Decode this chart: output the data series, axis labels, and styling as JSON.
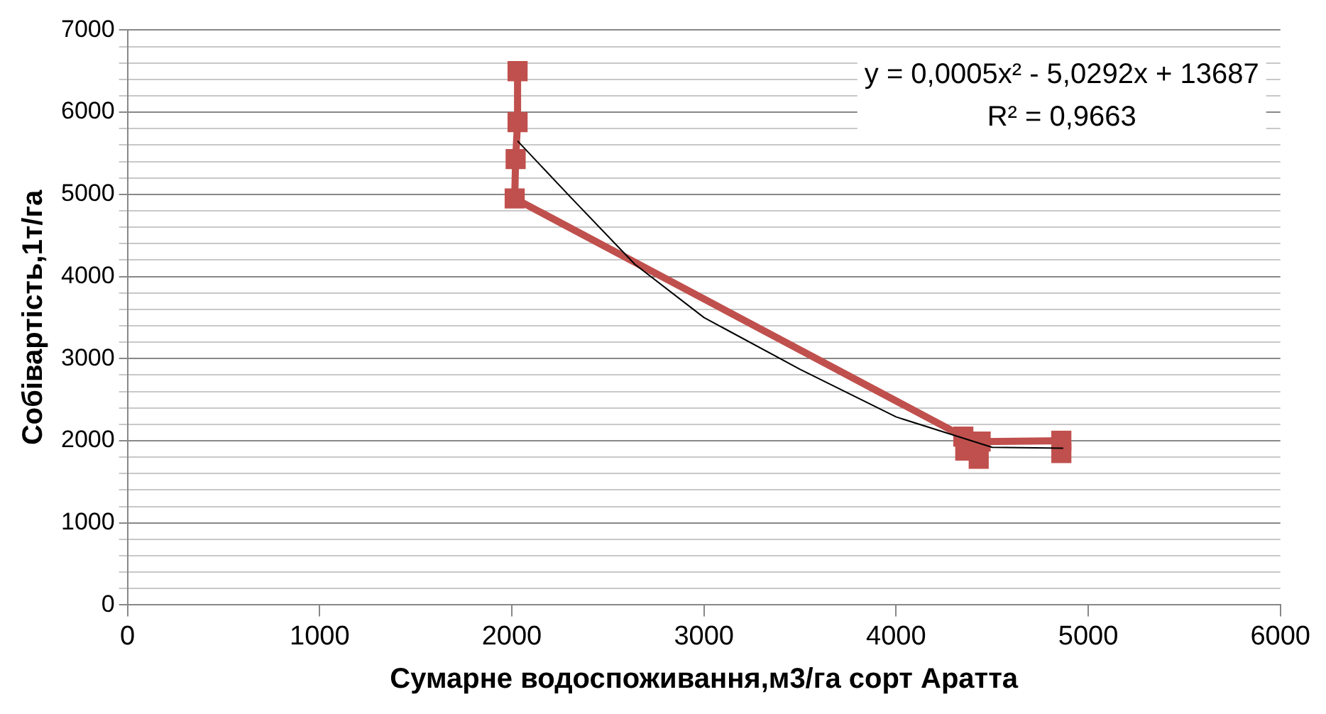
{
  "chart_data": {
    "type": "line",
    "xlabel": "Сумарне водоспоживання,м3/га сорт Аратта",
    "ylabel": "Собівартість,1т/га",
    "series": [
      {
        "type": "line",
        "color": "#c0504d",
        "marker": "square",
        "x": [
          2030,
          2030,
          2020,
          2015,
          4350,
          4360,
          4430,
          4440,
          4860,
          4860
        ],
        "values": [
          6500,
          5880,
          5430,
          4950,
          2050,
          1880,
          1780,
          1990,
          2000,
          1850
        ]
      },
      {
        "type": "line",
        "color": "#000000",
        "marker": "none",
        "x": [
          2030,
          2300,
          2640,
          3000,
          3500,
          4000,
          4500,
          4870
        ],
        "values": [
          5650,
          4980,
          4150,
          3500,
          2870,
          2290,
          1920,
          1910
        ]
      }
    ],
    "xlim": [
      0,
      6000
    ],
    "xticks": [
      0,
      1000,
      2000,
      3000,
      4000,
      5000,
      6000
    ],
    "ylim": [
      0,
      7000
    ],
    "yticks": [
      0,
      {
        "value": 200,
        "label": null
      },
      {
        "value": 400,
        "label": null
      },
      {
        "value": 600,
        "label": null
      },
      {
        "value": 800,
        "label": null
      },
      1000,
      {
        "value": 1200,
        "label": null
      },
      {
        "value": 1400,
        "label": null
      },
      {
        "value": 1600,
        "label": null
      },
      {
        "value": 1800,
        "label": null
      },
      2000,
      {
        "value": 2200,
        "label": null
      },
      {
        "value": 2400,
        "label": null
      },
      {
        "value": 2600,
        "label": null
      },
      {
        "value": 2800,
        "label": null
      },
      3000,
      {
        "value": 3200,
        "label": null
      },
      {
        "value": 3400,
        "label": null
      },
      {
        "value": 3600,
        "label": null
      },
      {
        "value": 3800,
        "label": null
      },
      4000,
      {
        "value": 4200,
        "label": null
      },
      {
        "value": 4400,
        "label": null
      },
      {
        "value": 4600,
        "label": null
      },
      {
        "value": 4800,
        "label": null
      },
      5000,
      {
        "value": 5200,
        "label": null
      },
      {
        "value": 5400,
        "label": null
      },
      {
        "value": 5600,
        "label": null
      },
      {
        "value": 5800,
        "label": null
      },
      6000,
      {
        "value": 6200,
        "label": null
      },
      {
        "value": 6400,
        "label": null
      },
      {
        "value": 6600,
        "label": null
      },
      {
        "value": 6800,
        "label": null
      },
      7000
    ],
    "grid": "y",
    "legend": false,
    "annotations": [
      "y = 0,0005x² - 5,0292x + 13687",
      "R² = 0,9663"
    ]
  }
}
